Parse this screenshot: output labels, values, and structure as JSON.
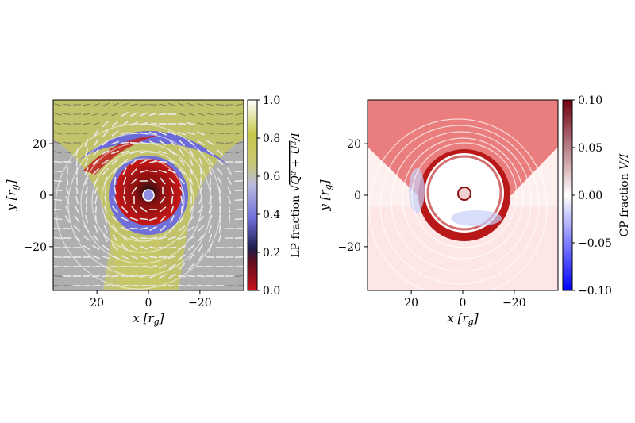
{
  "chart_data": [
    {
      "type": "heatmap",
      "title": "",
      "xlabel": "x [r_g]",
      "ylabel": "y [r_g]",
      "xlim": [
        37,
        -37
      ],
      "ylim": [
        -37,
        37
      ],
      "x_ticks": [
        20,
        0,
        -20
      ],
      "y_ticks": [
        20,
        0,
        -20
      ],
      "x_tick_labels": [
        "20",
        "0",
        "−20"
      ],
      "y_tick_labels": [
        "20",
        "0",
        "−20"
      ],
      "colorbar": {
        "label": "LP fraction √(Q² + U²)/I",
        "range": [
          0.0,
          1.0
        ],
        "ticks": [
          0.0,
          0.2,
          0.4,
          0.6,
          0.8,
          1.0
        ],
        "tick_labels": [
          "0.0",
          "0.2",
          "0.4",
          "0.6",
          "0.8",
          "1.0"
        ],
        "colormap_stops": [
          "#c8101a",
          "#1a1a3a",
          "#8a8ae6",
          "#d0d0d6",
          "#c8c85a",
          "#ffffff"
        ]
      },
      "overlays": [
        "polarization ticks",
        "photon ring contours"
      ]
    },
    {
      "type": "heatmap",
      "title": "",
      "xlabel": "x [r_g]",
      "ylabel": "y [r_g]",
      "xlim": [
        37,
        -37
      ],
      "ylim": [
        -37,
        37
      ],
      "x_ticks": [
        20,
        0,
        -20
      ],
      "y_ticks": [
        20,
        0,
        -20
      ],
      "x_tick_labels": [
        "20",
        "0",
        "−20"
      ],
      "y_tick_labels": [
        "20",
        "0",
        "−20"
      ],
      "colorbar": {
        "label": "CP fraction V/I",
        "range": [
          -0.1,
          0.1
        ],
        "ticks": [
          -0.1,
          -0.05,
          0.0,
          0.05,
          0.1
        ],
        "tick_labels": [
          "−0.10",
          "−0.05",
          "0.00",
          "0.05",
          "0.10"
        ],
        "colormap_stops": [
          "#0a0aff",
          "#ffffff",
          "#7a0010"
        ]
      },
      "overlays": [
        "photon ring contours"
      ]
    }
  ]
}
